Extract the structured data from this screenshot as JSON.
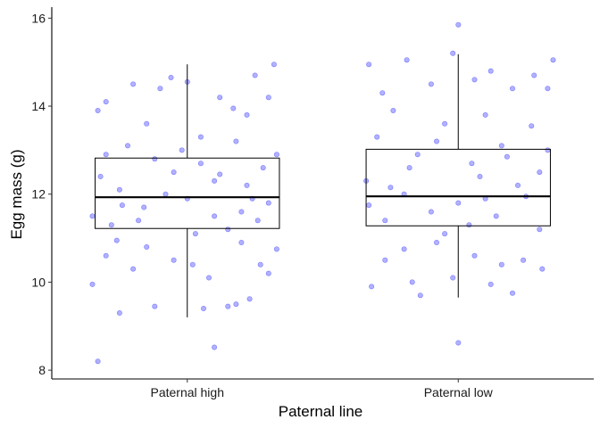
{
  "chart_data": {
    "type": "box+jitter",
    "xlabel": "Paternal line",
    "ylabel": "Egg mass (g)",
    "ylim": [
      7.8,
      16.25
    ],
    "yticks": [
      8,
      10,
      12,
      14,
      16
    ],
    "categories": [
      "Paternal high",
      "Paternal low"
    ],
    "grid": false,
    "legend": "none",
    "colors": {
      "points": "#3333ff",
      "box": "#000000",
      "axis": "#000000"
    },
    "boxes": [
      {
        "category": "Paternal high",
        "lower_whisker": 9.2,
        "q1": 11.22,
        "median": 11.93,
        "q3": 12.82,
        "upper_whisker": 14.95
      },
      {
        "category": "Paternal low",
        "lower_whisker": 9.65,
        "q1": 11.28,
        "median": 11.95,
        "q3": 13.02,
        "upper_whisker": 15.18
      }
    ],
    "jitter_points": {
      "Paternal high": [
        [
          -0.33,
          8.2
        ],
        [
          0.1,
          8.52
        ],
        [
          -0.25,
          9.3
        ],
        [
          0.15,
          9.45
        ],
        [
          -0.12,
          9.45
        ],
        [
          0.23,
          9.62
        ],
        [
          -0.35,
          9.95
        ],
        [
          0.06,
          9.4
        ],
        [
          0.18,
          9.5
        ],
        [
          -0.2,
          10.3
        ],
        [
          0.3,
          10.2
        ],
        [
          -0.05,
          10.5
        ],
        [
          0.2,
          10.9
        ],
        [
          -0.3,
          10.6
        ],
        [
          0.08,
          10.1
        ],
        [
          -0.15,
          10.8
        ],
        [
          0.27,
          10.4
        ],
        [
          0.33,
          10.75
        ],
        [
          -0.26,
          10.95
        ],
        [
          0.02,
          10.4
        ],
        [
          -0.1,
          14.4
        ],
        [
          -0.3,
          14.1
        ],
        [
          0.25,
          14.7
        ],
        [
          -0.2,
          14.5
        ],
        [
          0.32,
          14.95
        ],
        [
          0.0,
          14.55
        ],
        [
          -0.06,
          14.65
        ],
        [
          0.12,
          14.2
        ],
        [
          0.3,
          14.2
        ],
        [
          -0.33,
          13.9
        ],
        [
          0.22,
          13.8
        ],
        [
          -0.15,
          13.6
        ],
        [
          0.05,
          13.3
        ],
        [
          0.17,
          13.95
        ],
        [
          -0.05,
          12.5
        ],
        [
          0.1,
          12.3
        ],
        [
          -0.25,
          12.1
        ],
        [
          0.2,
          11.6
        ],
        [
          -0.3,
          12.9
        ],
        [
          0.28,
          12.6
        ],
        [
          0.0,
          11.9
        ],
        [
          -0.18,
          11.4
        ],
        [
          0.15,
          11.2
        ],
        [
          -0.08,
          12.0
        ],
        [
          0.05,
          12.7
        ],
        [
          0.3,
          11.8
        ],
        [
          -0.35,
          11.5
        ],
        [
          0.22,
          12.2
        ],
        [
          -0.12,
          12.8
        ],
        [
          0.1,
          11.5
        ],
        [
          -0.28,
          11.3
        ],
        [
          0.33,
          12.9
        ],
        [
          -0.02,
          13.0
        ],
        [
          0.18,
          13.2
        ],
        [
          -0.22,
          13.1
        ],
        [
          0.26,
          11.4
        ],
        [
          -0.32,
          12.4
        ],
        [
          0.12,
          12.45
        ],
        [
          -0.16,
          11.7
        ],
        [
          0.03,
          11.1
        ],
        [
          0.24,
          11.9
        ],
        [
          -0.24,
          11.75
        ]
      ],
      "Paternal low": [
        [
          0.0,
          8.62
        ],
        [
          -0.14,
          9.7
        ],
        [
          0.2,
          9.75
        ],
        [
          -0.32,
          9.9
        ],
        [
          -0.17,
          10.0
        ],
        [
          -0.02,
          10.1
        ],
        [
          0.12,
          9.95
        ],
        [
          -0.27,
          10.5
        ],
        [
          0.31,
          10.3
        ],
        [
          0.06,
          10.6
        ],
        [
          -0.08,
          10.9
        ],
        [
          0.24,
          10.5
        ],
        [
          -0.2,
          10.75
        ],
        [
          0.16,
          10.4
        ],
        [
          0.0,
          15.85
        ],
        [
          -0.02,
          15.2
        ],
        [
          0.35,
          15.05
        ],
        [
          -0.19,
          15.05
        ],
        [
          0.12,
          14.8
        ],
        [
          -0.33,
          14.95
        ],
        [
          0.28,
          14.7
        ],
        [
          -0.1,
          14.5
        ],
        [
          0.06,
          14.6
        ],
        [
          0.2,
          14.4
        ],
        [
          -0.28,
          14.3
        ],
        [
          0.33,
          14.4
        ],
        [
          -0.24,
          13.9
        ],
        [
          0.1,
          13.8
        ],
        [
          -0.05,
          13.6
        ],
        [
          0.27,
          13.55
        ],
        [
          -0.3,
          13.3
        ],
        [
          0.16,
          13.1
        ],
        [
          -0.15,
          12.9
        ],
        [
          0.05,
          12.7
        ],
        [
          0.3,
          12.5
        ],
        [
          -0.34,
          12.3
        ],
        [
          0.22,
          12.2
        ],
        [
          -0.2,
          12.0
        ],
        [
          0.0,
          11.8
        ],
        [
          -0.1,
          11.6
        ],
        [
          0.14,
          11.5
        ],
        [
          -0.27,
          11.4
        ],
        [
          0.3,
          11.2
        ],
        [
          -0.05,
          11.1
        ],
        [
          0.08,
          12.4
        ],
        [
          -0.18,
          12.6
        ],
        [
          0.25,
          11.95
        ],
        [
          -0.33,
          11.75
        ],
        [
          0.18,
          12.85
        ],
        [
          -0.08,
          13.2
        ],
        [
          0.04,
          11.3
        ],
        [
          0.33,
          13.0
        ],
        [
          -0.25,
          12.15
        ],
        [
          0.1,
          11.9
        ]
      ]
    }
  }
}
